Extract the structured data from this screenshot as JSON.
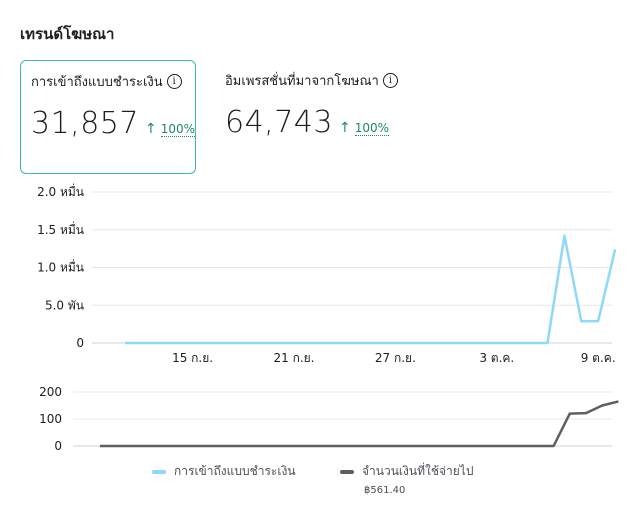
{
  "header": {
    "title": "เทรนด์โฆษณา"
  },
  "metrics": [
    {
      "label": "การเข้าถึงแบบชำระเงิน",
      "value": "31,857",
      "change": "100%"
    },
    {
      "label": "อิมเพรสชั่นที่มาจากโฆษณา",
      "value": "64,743",
      "change": "100%"
    }
  ],
  "colors": {
    "series1": "#8ed8f8",
    "series2": "#5f5f5f",
    "selected_border": "#3fb8b0",
    "positive": "#1d8a61"
  },
  "icons": {
    "info": "info-circle-icon",
    "arrow": "arrow-up-icon"
  },
  "chart_data": [
    {
      "type": "line",
      "yticks": [
        {
          "value": 0,
          "label": "0"
        },
        {
          "value": 5000,
          "label": "5.0 พัน"
        },
        {
          "value": 10000,
          "label": "1.0 หมื่น"
        },
        {
          "value": 15000,
          "label": "1.5 หมื่น"
        },
        {
          "value": 20000,
          "label": "2.0 หมื่น"
        }
      ],
      "ylim": [
        0,
        20000
      ],
      "xticks": [
        {
          "index": 4,
          "label": "15 ก.ย."
        },
        {
          "index": 10,
          "label": "21 ก.ย."
        },
        {
          "index": 16,
          "label": "27 ก.ย."
        },
        {
          "index": 22,
          "label": "3 ต.ค."
        },
        {
          "index": 28,
          "label": "9 ต.ค."
        }
      ],
      "series": [
        {
          "name": "การเข้าถึงแบบชำระเงิน",
          "values": [
            0,
            0,
            0,
            0,
            0,
            0,
            0,
            0,
            0,
            0,
            0,
            0,
            0,
            0,
            0,
            0,
            0,
            0,
            0,
            0,
            0,
            0,
            0,
            0,
            0,
            0,
            14200,
            2900,
            2900,
            12400
          ]
        }
      ]
    },
    {
      "type": "line",
      "yticks": [
        {
          "value": 0,
          "label": "0"
        },
        {
          "value": 100,
          "label": "100"
        },
        {
          "value": 200,
          "label": "200"
        }
      ],
      "ylim": [
        0,
        200
      ],
      "series": [
        {
          "name": "จำนวนเงินที่ใช้จ่ายไป",
          "values": [
            0,
            0,
            0,
            0,
            0,
            0,
            0,
            0,
            0,
            0,
            0,
            0,
            0,
            0,
            0,
            0,
            0,
            0,
            0,
            0,
            0,
            0,
            0,
            0,
            0,
            0,
            0,
            0,
            0,
            120,
            122,
            150,
            165
          ]
        }
      ]
    }
  ],
  "legend": [
    {
      "label": "การเข้าถึงแบบชำระเงิน"
    },
    {
      "label": "จำนวนเงินที่ใช้จ่ายไป",
      "sub": "฿561.40"
    }
  ]
}
